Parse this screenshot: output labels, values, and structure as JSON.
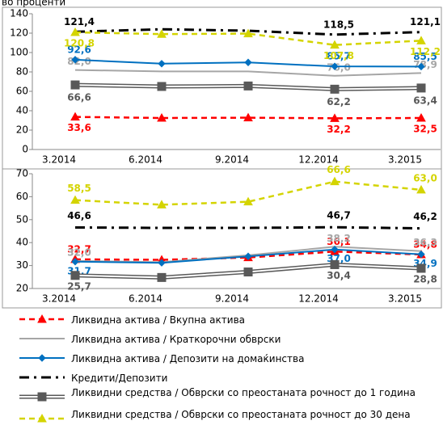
{
  "unit_label": "во проценти",
  "chart_data": [
    {
      "type": "line",
      "categories": [
        "3.2014",
        "6.2014",
        "9.2014",
        "12.2014",
        "3.2015"
      ],
      "ylim": [
        0,
        140
      ],
      "yticks": [
        0,
        20,
        40,
        60,
        80,
        100,
        120,
        140
      ],
      "series": [
        {
          "name": "Ликвидна актива / Вкупна актива",
          "color": "#ff0000",
          "dash": "dashed",
          "marker": "triangle",
          "values": [
            33.6,
            32.5,
            32.8,
            32.2,
            32.5
          ],
          "value_labels": [
            "33,6",
            null,
            null,
            "32,2",
            "32,5"
          ]
        },
        {
          "name": "Ликвидна актива / Краткорочни обврски",
          "color": "#a6a6a6",
          "dash": "solid",
          "marker": "none",
          "values": [
            82.0,
            80.5,
            80.5,
            76.0,
            78.9
          ],
          "value_labels": [
            "82,0",
            null,
            null,
            "76,0",
            "78,9"
          ]
        },
        {
          "name": "Ликвидна актива / Депозити на домаќинства",
          "color": "#0070c0",
          "dash": "solid",
          "marker": "diamond",
          "values": [
            92.6,
            88.5,
            89.8,
            85.7,
            85.5
          ],
          "value_labels": [
            "92,6",
            null,
            null,
            "85,7",
            "85,5"
          ]
        },
        {
          "name": "Кредити/Депозити",
          "color": "#000000",
          "dash": "dashdot",
          "marker": "none",
          "values": [
            121.4,
            124.0,
            122.5,
            118.5,
            121.1
          ],
          "value_labels": [
            "121,4",
            null,
            null,
            "118,5",
            "121,1"
          ]
        },
        {
          "name": "Ликвидни средства  / Обврски со преостаната рочност до 1 година",
          "color": "#595959",
          "dash": "double",
          "marker": "square",
          "values": [
            66.6,
            65.0,
            65.5,
            62.2,
            63.4
          ],
          "value_labels": [
            "66,6",
            null,
            null,
            "62,2",
            "63,4"
          ]
        },
        {
          "name": "Ликвидни средства  / Обврски со преостаната рочност до 30 дена",
          "color": "#d4d400",
          "dash": "dashed",
          "marker": "triangle",
          "values": [
            120.8,
            119.0,
            119.5,
            107.8,
            112.2
          ],
          "value_labels": [
            "120,8",
            null,
            null,
            "107,8",
            "112,2"
          ]
        }
      ]
    },
    {
      "type": "line",
      "categories": [
        "3.2014",
        "6.2014",
        "9.2014",
        "12.2014",
        "3.2015"
      ],
      "ylim": [
        20,
        70
      ],
      "yticks": [
        20,
        30,
        40,
        50,
        60,
        70
      ],
      "series": [
        {
          "color": "#ff0000",
          "dash": "dashed",
          "marker": "triangle",
          "values": [
            32.7,
            32.5,
            33.5,
            36.1,
            34.8
          ],
          "value_labels": [
            "32,7",
            null,
            null,
            "36,1",
            "34,8"
          ]
        },
        {
          "color": "#a6a6a6",
          "dash": "solid",
          "marker": "none",
          "values": [
            32.0,
            31.5,
            34.5,
            38.2,
            36.3
          ],
          "value_labels": [
            "32,0",
            null,
            null,
            "38,2",
            "36,3"
          ]
        },
        {
          "color": "#0070c0",
          "dash": "solid",
          "marker": "diamond",
          "values": [
            31.7,
            31.2,
            34.0,
            37.0,
            34.9
          ],
          "value_labels": [
            "31,7",
            null,
            null,
            "37,0",
            "34,9"
          ]
        },
        {
          "color": "#000000",
          "dash": "dashdot",
          "marker": "none",
          "values": [
            46.6,
            46.4,
            46.4,
            46.7,
            46.2
          ],
          "value_labels": [
            "46,6",
            null,
            null,
            "46,7",
            "46,2"
          ]
        },
        {
          "color": "#595959",
          "dash": "double",
          "marker": "square",
          "values": [
            25.7,
            24.8,
            27.2,
            30.4,
            28.8
          ],
          "value_labels": [
            "25,7",
            null,
            null,
            "30,4",
            "28,8"
          ]
        },
        {
          "color": "#d4d400",
          "dash": "dashed",
          "marker": "triangle",
          "values": [
            58.5,
            56.5,
            57.8,
            66.6,
            63.0
          ],
          "value_labels": [
            "58,5",
            null,
            null,
            "66,6",
            "63,0"
          ]
        }
      ]
    }
  ]
}
